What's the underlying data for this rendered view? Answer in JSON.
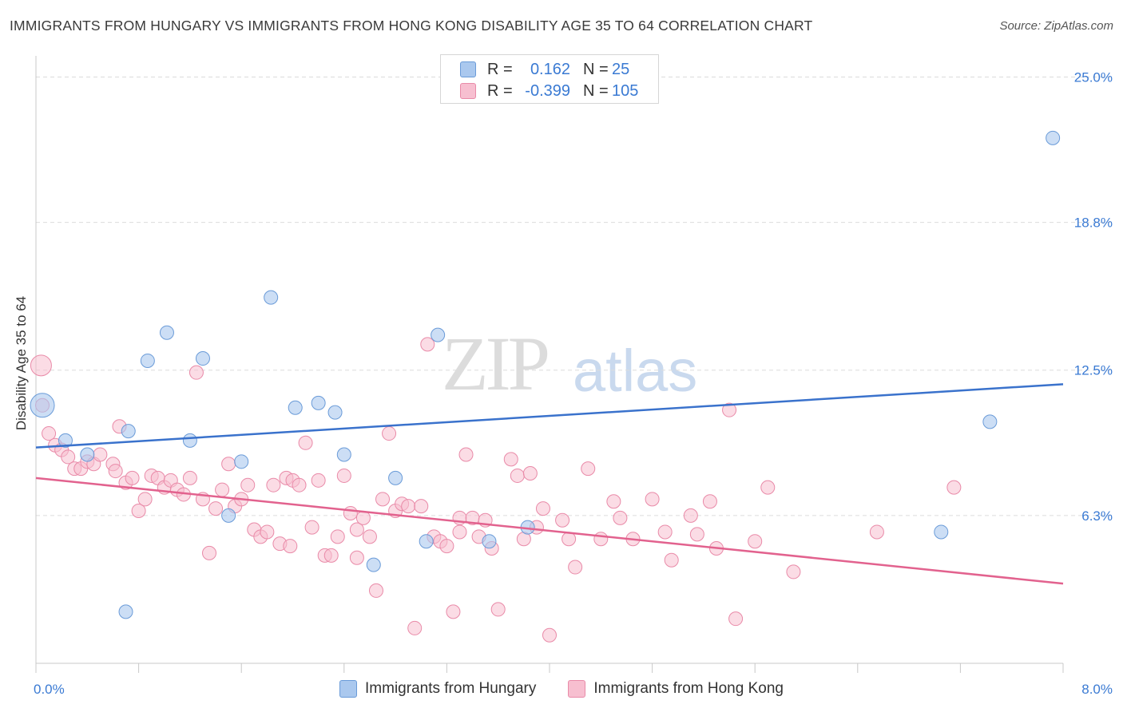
{
  "title": "IMMIGRANTS FROM HUNGARY VS IMMIGRANTS FROM HONG KONG DISABILITY AGE 35 TO 64 CORRELATION CHART",
  "source": "Source: ZipAtlas.com",
  "watermark": {
    "zip": "ZIP",
    "atlas": "atlas"
  },
  "legend": {
    "rows": [
      {
        "r_label": "R =",
        "r_value": "0.162",
        "n_label": "N =",
        "n_value": "25"
      },
      {
        "r_label": "R =",
        "r_value": "-0.399",
        "n_label": "N =",
        "n_value": "105"
      }
    ]
  },
  "bottom_legend": {
    "series1": "Immigrants from Hungary",
    "series2": "Immigrants from Hong Kong"
  },
  "colors": {
    "hungary_fill": "#aac8ee",
    "hungary_stroke": "#6a9bd8",
    "hungary_line": "#3a72cc",
    "hongkong_fill": "#f7bfd0",
    "hongkong_stroke": "#e98aa8",
    "hongkong_line": "#e2628e",
    "axis_label": "#3a7ad3"
  },
  "chart_data": {
    "type": "scatter",
    "ylabel": "Disability Age 35 to 64",
    "xlim": [
      0,
      8
    ],
    "ylim": [
      0,
      25.9
    ],
    "x_tick_labels": [
      "0.0%",
      "8.0%"
    ],
    "y_ticks": [
      {
        "value": 6.3,
        "label": "6.3%"
      },
      {
        "value": 12.5,
        "label": "12.5%"
      },
      {
        "value": 18.8,
        "label": "18.8%"
      },
      {
        "value": 25.0,
        "label": "25.0%"
      }
    ],
    "series": [
      {
        "name": "Immigrants from Hungary",
        "trend": [
          [
            0,
            9.2
          ],
          [
            8,
            11.9
          ]
        ],
        "points": [
          [
            0.05,
            11.0
          ],
          [
            0.23,
            9.5
          ],
          [
            0.4,
            8.9
          ],
          [
            0.72,
            9.9
          ],
          [
            0.87,
            12.9
          ],
          [
            1.02,
            14.1
          ],
          [
            1.2,
            9.5
          ],
          [
            1.3,
            13.0
          ],
          [
            1.5,
            6.3
          ],
          [
            1.6,
            8.6
          ],
          [
            1.83,
            15.6
          ],
          [
            2.02,
            10.9
          ],
          [
            2.2,
            11.1
          ],
          [
            2.33,
            10.7
          ],
          [
            2.4,
            8.9
          ],
          [
            2.63,
            4.2
          ],
          [
            2.8,
            7.9
          ],
          [
            3.04,
            5.2
          ],
          [
            3.13,
            14.0
          ],
          [
            3.53,
            5.2
          ],
          [
            3.83,
            5.8
          ],
          [
            7.05,
            5.6
          ],
          [
            7.43,
            10.3
          ],
          [
            7.92,
            22.4
          ],
          [
            0.7,
            2.2
          ]
        ]
      },
      {
        "name": "Immigrants from Hong Kong",
        "trend": [
          [
            0,
            7.9
          ],
          [
            8,
            3.4
          ]
        ],
        "points": [
          [
            0.04,
            12.7
          ],
          [
            0.05,
            11.0
          ],
          [
            0.1,
            9.8
          ],
          [
            0.15,
            9.3
          ],
          [
            0.2,
            9.1
          ],
          [
            0.25,
            8.8
          ],
          [
            0.3,
            8.3
          ],
          [
            0.35,
            8.3
          ],
          [
            0.4,
            8.6
          ],
          [
            0.45,
            8.5
          ],
          [
            0.5,
            8.9
          ],
          [
            0.6,
            8.5
          ],
          [
            0.65,
            10.1
          ],
          [
            0.7,
            7.7
          ],
          [
            0.75,
            7.9
          ],
          [
            0.8,
            6.5
          ],
          [
            0.85,
            7.0
          ],
          [
            0.9,
            8.0
          ],
          [
            0.95,
            7.9
          ],
          [
            1.0,
            7.5
          ],
          [
            1.05,
            7.8
          ],
          [
            1.1,
            7.4
          ],
          [
            1.15,
            7.2
          ],
          [
            1.2,
            7.9
          ],
          [
            1.25,
            12.4
          ],
          [
            1.3,
            7.0
          ],
          [
            1.35,
            4.7
          ],
          [
            1.4,
            6.6
          ],
          [
            1.45,
            7.4
          ],
          [
            1.5,
            8.5
          ],
          [
            1.55,
            6.7
          ],
          [
            1.6,
            7.0
          ],
          [
            1.65,
            7.6
          ],
          [
            1.7,
            5.7
          ],
          [
            1.75,
            5.4
          ],
          [
            1.8,
            5.6
          ],
          [
            1.85,
            7.6
          ],
          [
            1.9,
            5.1
          ],
          [
            1.95,
            7.9
          ],
          [
            2.0,
            7.8
          ],
          [
            2.05,
            7.6
          ],
          [
            2.1,
            9.4
          ],
          [
            2.15,
            5.8
          ],
          [
            2.2,
            7.8
          ],
          [
            2.25,
            4.6
          ],
          [
            2.3,
            4.6
          ],
          [
            2.35,
            5.4
          ],
          [
            2.4,
            8.0
          ],
          [
            2.45,
            6.4
          ],
          [
            2.5,
            5.7
          ],
          [
            2.55,
            6.2
          ],
          [
            2.6,
            5.4
          ],
          [
            2.65,
            3.1
          ],
          [
            2.7,
            7.0
          ],
          [
            2.75,
            9.8
          ],
          [
            2.8,
            6.5
          ],
          [
            2.85,
            6.8
          ],
          [
            2.9,
            6.7
          ],
          [
            2.95,
            1.5
          ],
          [
            3.0,
            6.7
          ],
          [
            3.05,
            13.6
          ],
          [
            3.1,
            5.4
          ],
          [
            3.15,
            5.2
          ],
          [
            3.2,
            5.0
          ],
          [
            3.25,
            2.2
          ],
          [
            3.3,
            6.2
          ],
          [
            3.35,
            8.9
          ],
          [
            3.4,
            6.2
          ],
          [
            3.45,
            5.4
          ],
          [
            3.5,
            6.1
          ],
          [
            3.55,
            4.9
          ],
          [
            3.6,
            2.3
          ],
          [
            3.7,
            8.7
          ],
          [
            3.75,
            8.0
          ],
          [
            3.8,
            5.3
          ],
          [
            3.85,
            8.1
          ],
          [
            3.9,
            5.8
          ],
          [
            3.95,
            6.6
          ],
          [
            4.0,
            1.2
          ],
          [
            4.1,
            6.1
          ],
          [
            4.15,
            5.3
          ],
          [
            4.2,
            4.1
          ],
          [
            4.3,
            8.3
          ],
          [
            4.4,
            5.3
          ],
          [
            4.5,
            6.9
          ],
          [
            4.55,
            6.2
          ],
          [
            4.65,
            5.3
          ],
          [
            4.8,
            7.0
          ],
          [
            4.9,
            5.6
          ],
          [
            4.95,
            4.4
          ],
          [
            5.1,
            6.3
          ],
          [
            5.15,
            5.5
          ],
          [
            5.25,
            6.9
          ],
          [
            5.3,
            4.9
          ],
          [
            5.4,
            10.8
          ],
          [
            5.45,
            1.9
          ],
          [
            5.6,
            5.2
          ],
          [
            5.7,
            7.5
          ],
          [
            5.9,
            3.9
          ],
          [
            6.55,
            5.6
          ],
          [
            7.15,
            7.5
          ],
          [
            2.5,
            4.5
          ],
          [
            3.3,
            5.6
          ],
          [
            1.98,
            5.0
          ],
          [
            0.62,
            8.2
          ]
        ]
      }
    ]
  }
}
